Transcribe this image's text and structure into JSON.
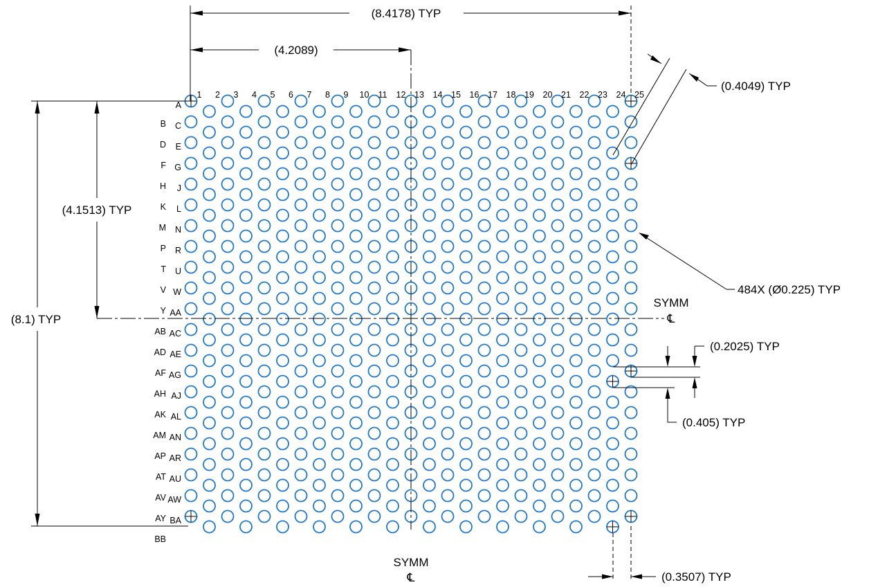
{
  "dimensions": {
    "overall_width": "(8.4178) TYP",
    "half_width": "(4.2089)",
    "row_pitch": "(0.4049) TYP",
    "ball_callout": "484X (Ø0.225) TYP",
    "overall_height": "(8.1) TYP",
    "half_height": "(4.1513) TYP",
    "half_row_offset": "(0.2025) TYP",
    "row_offset": "(0.405) TYP",
    "col_offset": "(0.3507) TYP"
  },
  "symmetry": {
    "horizontal_label": "SYMM",
    "vertical_label": "SYMM",
    "symbol": "℄"
  },
  "column_labels": [
    "1",
    "2",
    "3",
    "4",
    "5",
    "6",
    "7",
    "8",
    "9",
    "10",
    "11",
    "12",
    "13",
    "14",
    "15",
    "16",
    "17",
    "18",
    "19",
    "20",
    "21",
    "22",
    "23",
    "24",
    "25"
  ],
  "row_labels": [
    "A",
    "B",
    "C",
    "D",
    "E",
    "F",
    "G",
    "H",
    "J",
    "K",
    "L",
    "M",
    "N",
    "P",
    "R",
    "T",
    "U",
    "V",
    "W",
    "Y",
    "AA",
    "AB",
    "AC",
    "AD",
    "AE",
    "AF",
    "AG",
    "AH",
    "AJ",
    "AK",
    "AL",
    "AM",
    "AN",
    "AP",
    "AR",
    "AT",
    "AU",
    "AV",
    "AW",
    "AY",
    "BA",
    "BB"
  ],
  "colors": {
    "pad": "#1f78d1",
    "line": "#000000"
  }
}
